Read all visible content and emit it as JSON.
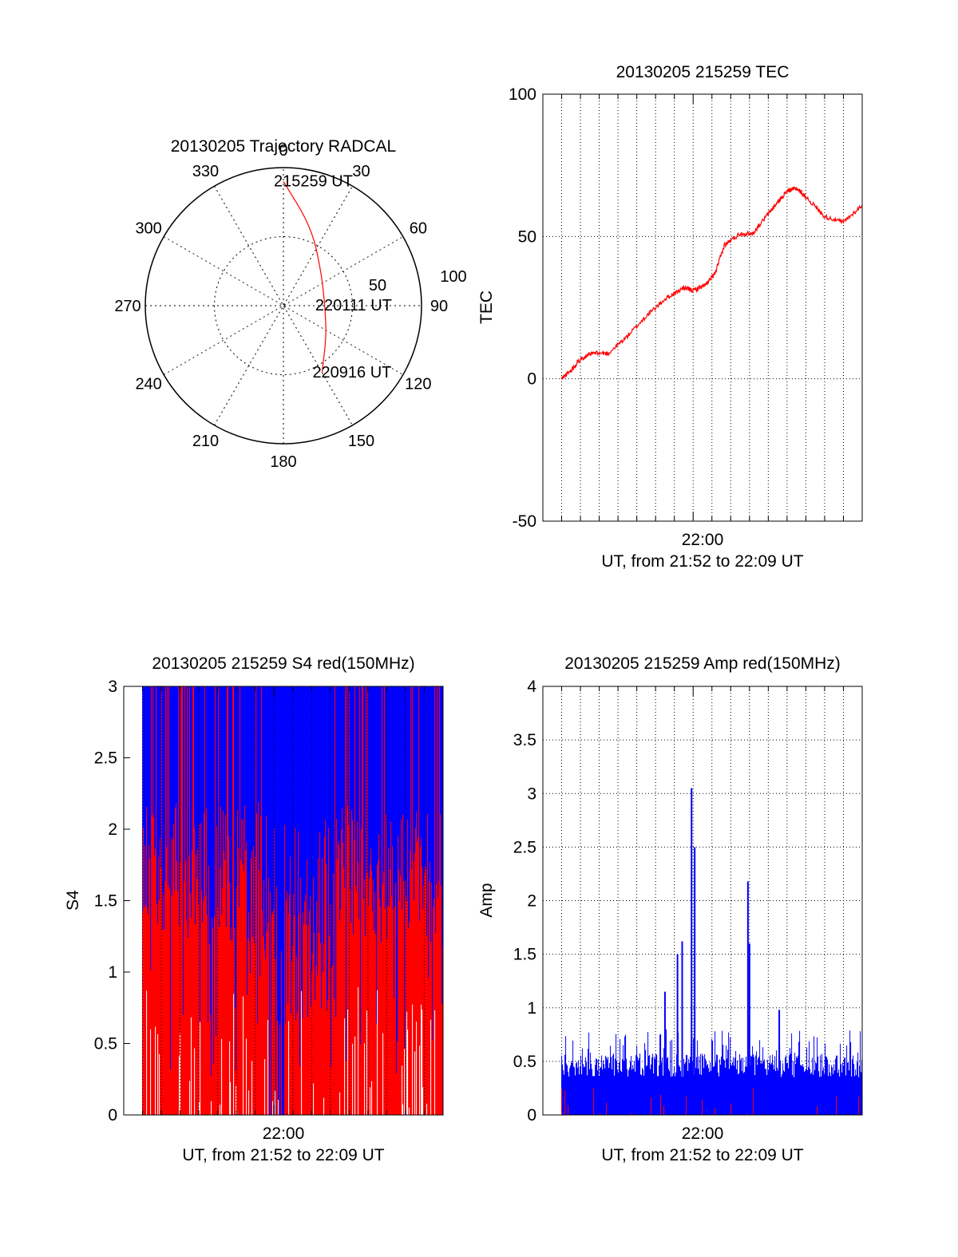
{
  "chart_data": [
    {
      "id": "trajectory",
      "type": "polar",
      "title": "20130205 Trajectory RADCAL",
      "angle_labels": [
        "0",
        "30",
        "60",
        "90",
        "120",
        "150",
        "180",
        "210",
        "240",
        "270",
        "300",
        "330"
      ],
      "radius_labels": [
        "50",
        "100"
      ],
      "radius_max": 100,
      "grid": true,
      "track_color": "#ff0000",
      "track": [
        {
          "az": 0,
          "r": 90
        },
        {
          "az": 20,
          "r": 60
        },
        {
          "az": 50,
          "r": 36
        },
        {
          "az": 90,
          "r": 30
        },
        {
          "az": 125,
          "r": 38
        },
        {
          "az": 150,
          "r": 56
        }
      ],
      "annotations": [
        {
          "text": "215259 UT",
          "az": 0,
          "r": 90
        },
        {
          "text": "220111 UT",
          "az": 90,
          "r": 30
        },
        {
          "text": "220916 UT",
          "az": 150,
          "r": 56
        }
      ]
    },
    {
      "id": "tec",
      "type": "line",
      "title": "20130205 215259 TEC",
      "xlabel": "UT, from 21:52 to 22:09 UT",
      "ylabel": "TEC",
      "xlim": [
        "21:52",
        "22:09"
      ],
      "ylim": [
        -50,
        100
      ],
      "yticks": [
        -50,
        0,
        50,
        100
      ],
      "xtick_label": "22:00",
      "grid": true,
      "series": [
        {
          "color": "#ff0000",
          "x": [
            "21:52:59",
            "21:53:30",
            "21:54:00",
            "21:54:40",
            "21:55:30",
            "21:56:30",
            "21:57:30",
            "21:58:30",
            "21:59:30",
            "22:00:00",
            "22:00:40",
            "22:01:10",
            "22:01:40",
            "22:02:30",
            "22:03:10",
            "22:04:00",
            "22:04:30",
            "22:05:00",
            "22:05:30",
            "22:06:00",
            "22:07:00",
            "22:08:00",
            "22:09:00"
          ],
          "y": [
            0,
            3,
            7,
            9,
            9,
            15,
            22,
            28,
            32,
            31,
            33,
            37,
            47,
            51,
            51,
            58,
            62,
            66,
            67,
            64,
            57,
            55,
            61
          ]
        }
      ]
    },
    {
      "id": "s4",
      "type": "bar",
      "title": "20130205 215259 S4 red(150MHz)",
      "xlabel": "UT, from 21:52 to 22:09 UT",
      "ylabel": "S4",
      "xlim": [
        "21:52",
        "22:09"
      ],
      "ylim": [
        0,
        3
      ],
      "yticks": [
        "0",
        "0.5",
        "1",
        "1.5",
        "2",
        "2.5",
        "3"
      ],
      "xtick_label": "22:00",
      "grid": true,
      "series": [
        {
          "name": "",
          "color": "#0000ff",
          "x_range": [
            "21:52:59",
            "22:09:00"
          ],
          "upper_envelope": 3.0,
          "typical_value": 2.5
        },
        {
          "name": "",
          "color": "#ff0000",
          "x_range": [
            "21:52:59",
            "22:09:00"
          ],
          "typical_value": 1.8,
          "max": 3.0
        }
      ]
    },
    {
      "id": "amp",
      "type": "bar",
      "title": "20130205 215259 Amp red(150MHz)",
      "xlabel": "UT, from 21:52 to 22:09 UT",
      "ylabel": "Amp",
      "xlim": [
        "21:52",
        "22:09"
      ],
      "ylim": [
        0,
        4
      ],
      "yticks": [
        "0",
        "0.5",
        "1",
        "1.5",
        "2",
        "2.5",
        "3",
        "3.5",
        "4"
      ],
      "xtick_label": "22:00",
      "grid": true,
      "series": [
        {
          "name": "",
          "color": "#0000ff",
          "baseline": 0.35,
          "noise_max": 0.8,
          "peaks": [
            {
              "x": "21:58:30",
              "y": 1.15
            },
            {
              "x": "21:59:10",
              "y": 1.5
            },
            {
              "x": "21:59:25",
              "y": 1.62
            },
            {
              "x": "21:59:55",
              "y": 3.05
            },
            {
              "x": "22:00:05",
              "y": 2.5
            },
            {
              "x": "22:02:55",
              "y": 2.18
            },
            {
              "x": "22:03:00",
              "y": 1.6
            },
            {
              "x": "22:04:35",
              "y": 0.98
            }
          ]
        },
        {
          "name": "",
          "color": "#ff0000",
          "typical_value": 0.25
        }
      ]
    }
  ]
}
